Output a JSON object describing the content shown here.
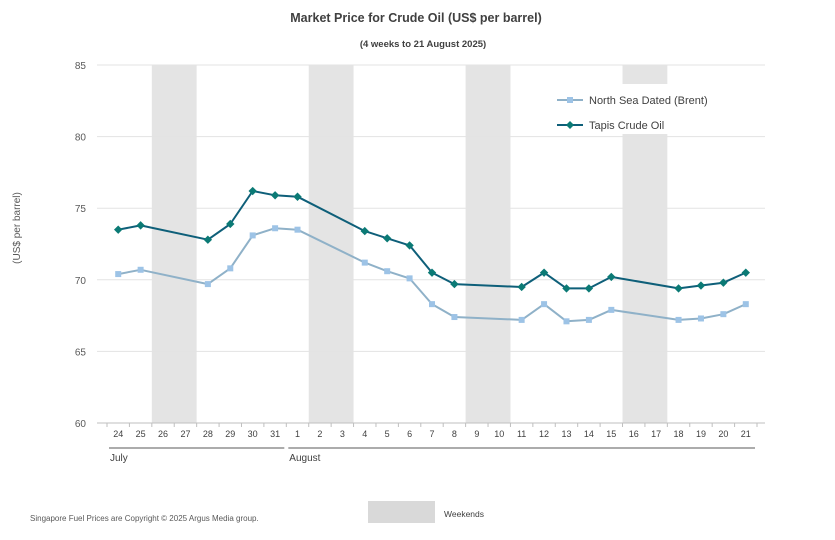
{
  "chart_data": {
    "type": "line",
    "title": "Market Price for Crude  Oil (US$  per barrel)",
    "subtitle": "(4 weeks to 21 August 2025)",
    "ylabel": "(US$ per barrel)",
    "xlabel": "",
    "ylim": [
      60,
      85
    ],
    "yticks": [
      60,
      65,
      70,
      75,
      80,
      85
    ],
    "grid": true,
    "legend_position": "top-right",
    "x": [
      "24",
      "25",
      "26",
      "27",
      "28",
      "29",
      "30",
      "31",
      "1",
      "2",
      "3",
      "4",
      "5",
      "6",
      "7",
      "8",
      "9",
      "10",
      "11",
      "12",
      "13",
      "14",
      "15",
      "16",
      "17",
      "18",
      "19",
      "20",
      "21"
    ],
    "months": [
      {
        "label": "July",
        "start": "24",
        "end": "31"
      },
      {
        "label": "August",
        "start": "1",
        "end": "21"
      }
    ],
    "weekend_bands": [
      [
        "26",
        "27"
      ],
      [
        "2",
        "3"
      ],
      [
        "9",
        "10"
      ],
      [
        "16",
        "17"
      ]
    ],
    "series": [
      {
        "name": "North Sea Dated (Brent)",
        "color": "#9dc3e6",
        "line_color": "#8fb1c8",
        "marker": "square",
        "values": [
          70.4,
          70.7,
          null,
          null,
          69.7,
          70.8,
          73.1,
          73.6,
          73.5,
          null,
          null,
          71.2,
          70.6,
          70.1,
          68.3,
          67.4,
          null,
          null,
          67.2,
          68.3,
          67.1,
          67.2,
          67.9,
          null,
          null,
          67.2,
          67.3,
          67.6,
          68.3
        ]
      },
      {
        "name": "Tapis Crude Oil",
        "color": "#0b7a75",
        "line_color": "#0e5f79",
        "marker": "diamond",
        "values": [
          73.5,
          73.8,
          null,
          null,
          72.8,
          73.9,
          76.2,
          75.9,
          75.8,
          null,
          null,
          73.4,
          72.9,
          72.4,
          70.5,
          69.7,
          null,
          null,
          69.5,
          70.5,
          69.4,
          69.4,
          70.2,
          null,
          null,
          69.4,
          69.6,
          69.8,
          70.5
        ]
      }
    ],
    "weekend_legend": "Weekends",
    "weekend_color": "#e4e4e4",
    "footer": "Singapore  Fuel Prices are  Copyright © 2025 Argus Media  group."
  }
}
